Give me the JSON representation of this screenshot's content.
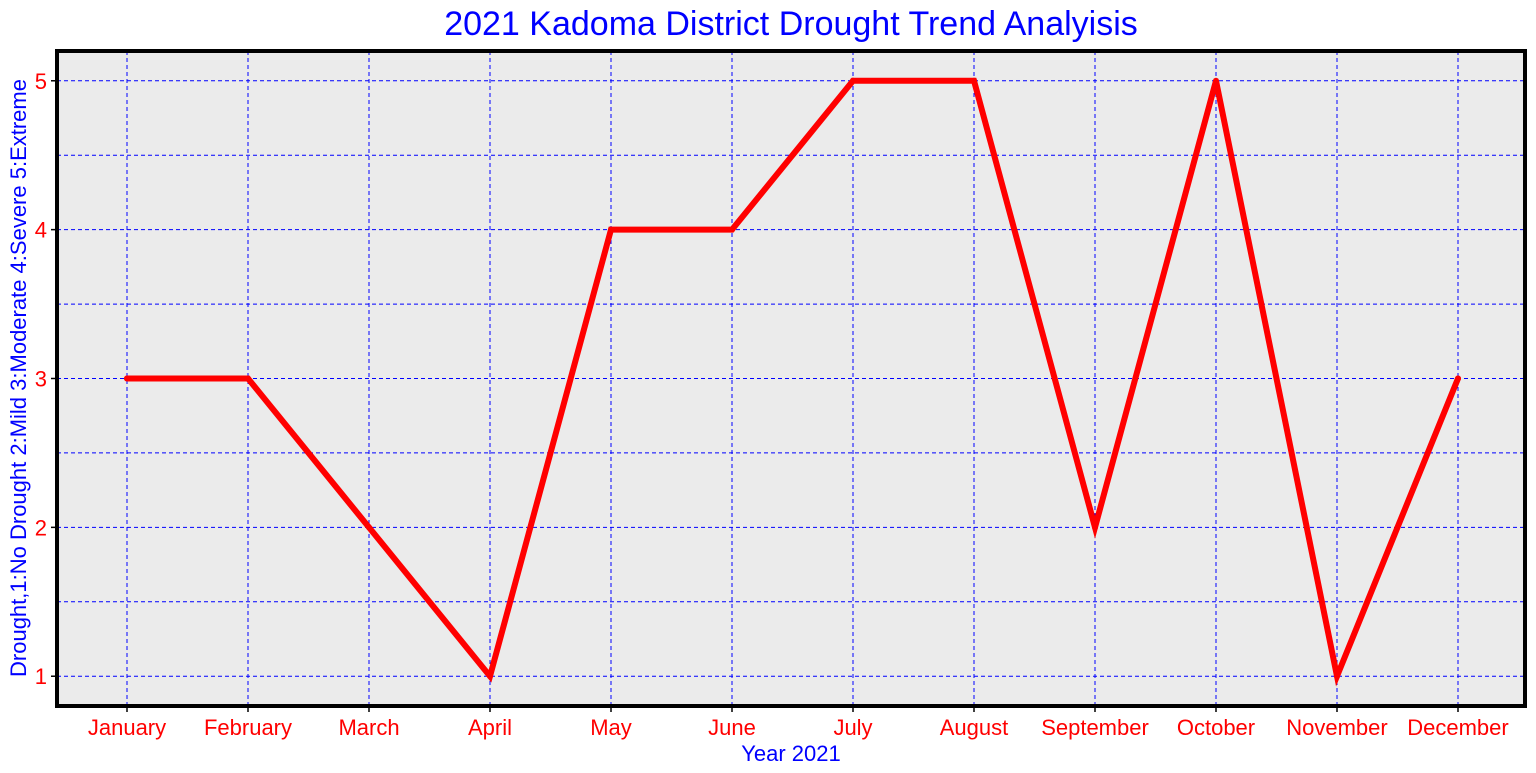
{
  "chart_data": {
    "type": "line",
    "title": "2021 Kadoma District Drought Trend Analyisis",
    "xlabel": "Year 2021",
    "ylabel": "Drought,1:No Drought 2:Mild 3:Moderate 4:Severe 5:Extreme",
    "categories": [
      "January",
      "February",
      "March",
      "April",
      "May",
      "June",
      "July",
      "August",
      "September",
      "October",
      "November",
      "December"
    ],
    "series": [
      {
        "values": [
          3,
          3,
          2,
          1,
          4,
          4,
          5,
          5,
          2,
          5,
          1,
          3
        ]
      }
    ],
    "yticks": [
      "1",
      "2",
      "3",
      "4",
      "5"
    ],
    "ylim": [
      0.8,
      5.2
    ],
    "grid": true,
    "colors": {
      "title": "#0000ff",
      "axis_label": "#0000ff",
      "tick_label": "#ff0000",
      "line": "#ff0000",
      "grid": "#0000ff",
      "plot_background": "#ebebeb",
      "frame": "#000000"
    }
  }
}
